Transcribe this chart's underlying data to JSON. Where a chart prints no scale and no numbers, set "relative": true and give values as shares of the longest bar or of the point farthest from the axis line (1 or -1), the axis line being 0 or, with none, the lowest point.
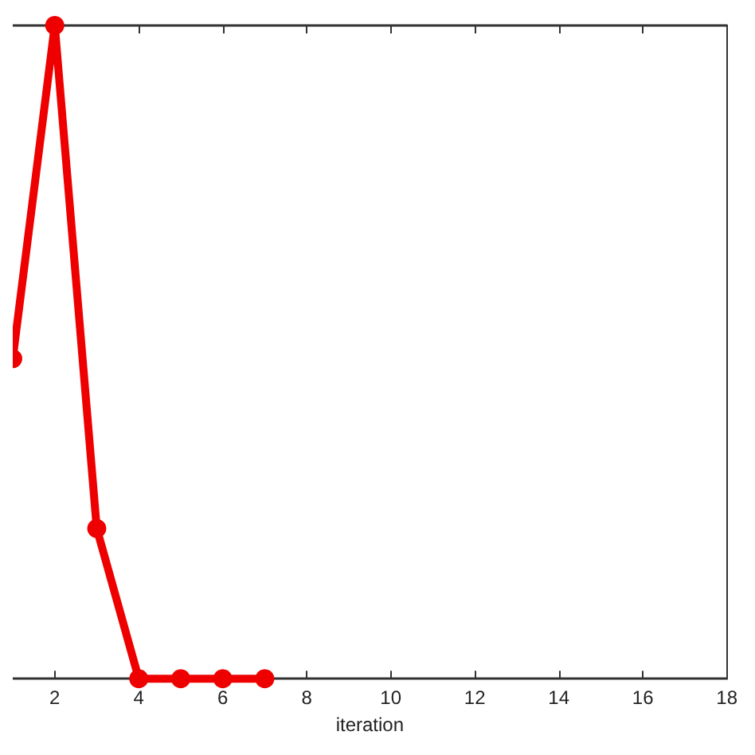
{
  "chart_data": {
    "type": "line",
    "xlabel": "iteration",
    "relative": true,
    "x": [
      1,
      2,
      3,
      4,
      5,
      6,
      7
    ],
    "xlim": [
      1,
      18
    ],
    "xticks": [
      2,
      4,
      6,
      8,
      10,
      12,
      14,
      16,
      18
    ],
    "series": [
      {
        "color": "#ee0000",
        "values": [
          0.49,
          1,
          0.23,
          0,
          0,
          0,
          0
        ]
      }
    ],
    "marker": "circle",
    "line_style": "solid"
  }
}
